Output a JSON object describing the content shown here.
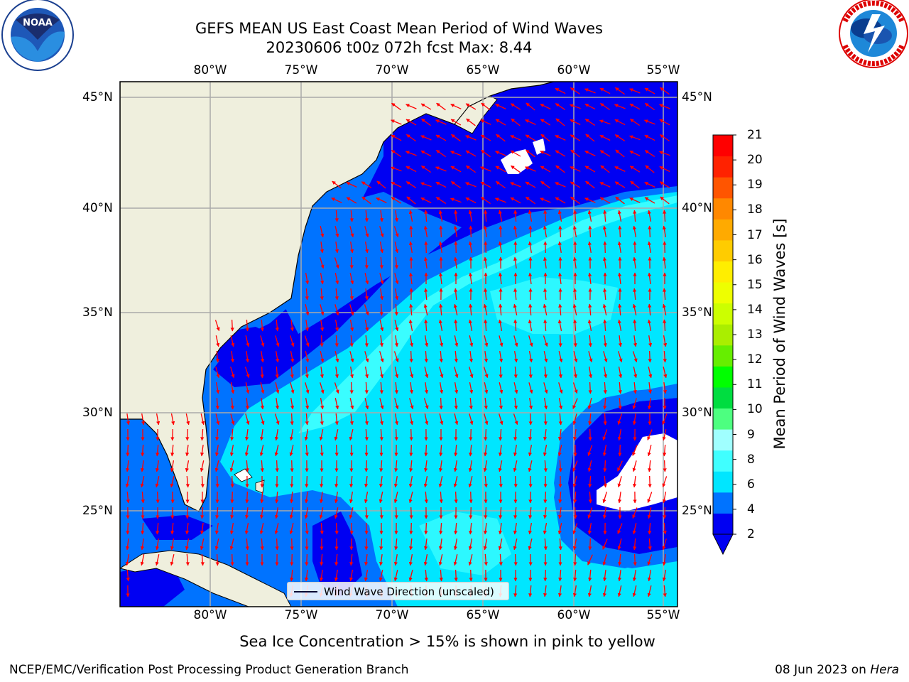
{
  "title": {
    "line1": "GEFS MEAN US East Coast Mean Period of Wind Waves",
    "line2": "20230606 t00z 072h fcst   Max: 8.44"
  },
  "logos": {
    "left": {
      "icon": "noaa-logo",
      "text": "NOAA"
    },
    "right": {
      "icon": "nws-logo",
      "text": "NATIONAL WEATHER SERVICE"
    }
  },
  "map": {
    "lon_labels": [
      "80°W",
      "75°W",
      "70°W",
      "65°W",
      "60°W",
      "55°W"
    ],
    "lat_labels": [
      "45°N",
      "40°N",
      "35°N",
      "30°N",
      "25°N"
    ],
    "legend_label": "Wind Wave Direction (unscaled)",
    "colors": {
      "land": "#efefdd",
      "grid": "#aaaaaa",
      "arrow": "#ff0000",
      "missing": "#ffffff"
    }
  },
  "colorbar": {
    "label": "Mean Period of Wind Waves [s]",
    "ticks": [
      "2",
      "4",
      "6",
      "8",
      "9",
      "10",
      "11",
      "12",
      "13",
      "14",
      "15",
      "16",
      "17",
      "18",
      "19",
      "20",
      "21"
    ],
    "colors": [
      "#0000f2",
      "#0073ff",
      "#00e6ff",
      "#40ffff",
      "#a0ffff",
      "#4dff80",
      "#00dd40",
      "#00ff00",
      "#66ee00",
      "#aaee00",
      "#ccff00",
      "#eeff00",
      "#ffee00",
      "#ffcc00",
      "#ffaa00",
      "#ff8800",
      "#ff5500",
      "#ff2200",
      "#ff0000"
    ]
  },
  "footer": {
    "sea_ice_note": "Sea Ice Concentration > 15% is shown in pink to yellow",
    "left": "NCEP/EMC/Verification Post Processing Product Generation Branch",
    "right_date": "08 Jun 2023 on ",
    "right_host": "Hera"
  }
}
